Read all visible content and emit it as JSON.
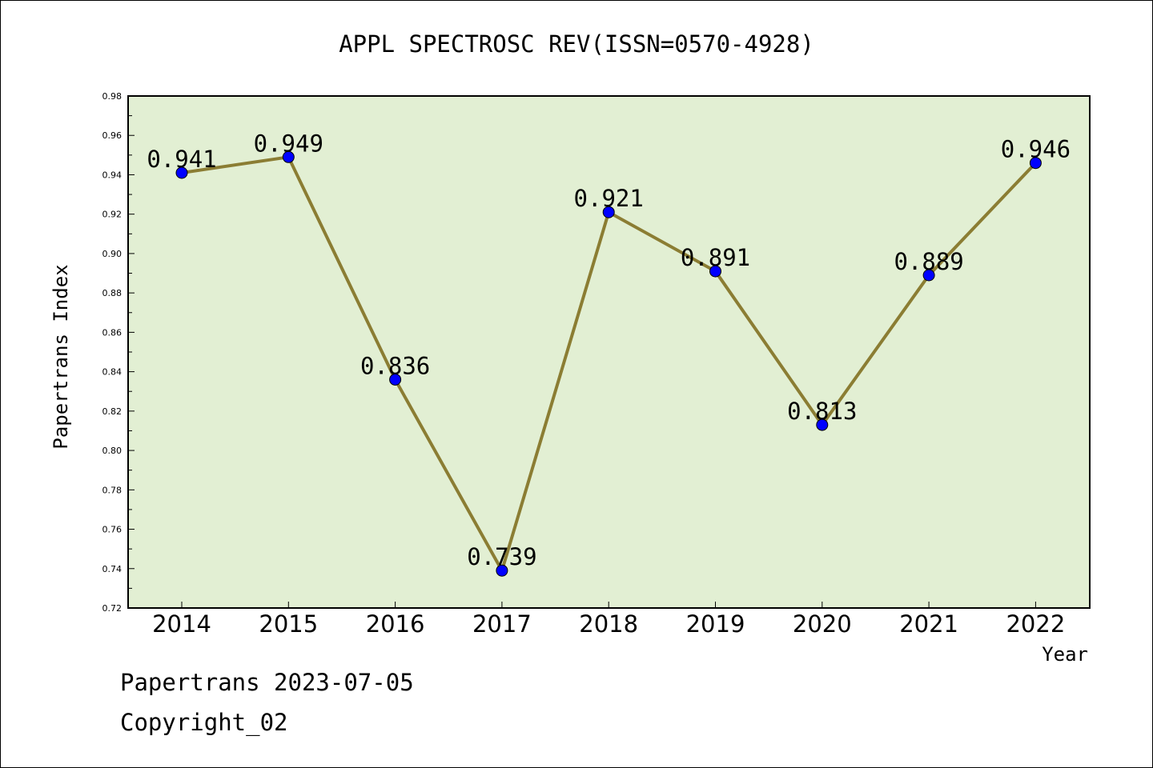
{
  "footer": {
    "line1": "Papertrans 2023-07-05",
    "line2": "Copyright_02"
  },
  "chart_data": {
    "type": "line",
    "title": "APPL SPECTROSC REV(ISSN=0570-4928)",
    "xlabel": "Year",
    "ylabel": "Papertrans Index",
    "categories": [
      "2014",
      "2015",
      "2016",
      "2017",
      "2018",
      "2019",
      "2020",
      "2021",
      "2022"
    ],
    "series": [
      {
        "values": [
          0.941,
          0.949,
          0.836,
          0.739,
          0.921,
          0.891,
          0.813,
          0.889,
          0.946
        ],
        "labels": [
          "0.941",
          "0.949",
          "0.836",
          "0.739",
          "0.921",
          "0.891",
          "0.813",
          "0.889",
          "0.946"
        ]
      }
    ],
    "ylim": [
      0.72,
      0.98
    ],
    "yticks": [
      "0.72",
      "0.74",
      "0.76",
      "0.78",
      "0.80",
      "0.82",
      "0.84",
      "0.86",
      "0.88",
      "0.90",
      "0.92",
      "0.94",
      "0.96",
      "0.98"
    ],
    "grid": false,
    "legend": "none",
    "colors": {
      "plot_background": "#e2efd3",
      "line": "#8b7d33",
      "marker": "#0000ff",
      "axis": "#000000"
    }
  }
}
